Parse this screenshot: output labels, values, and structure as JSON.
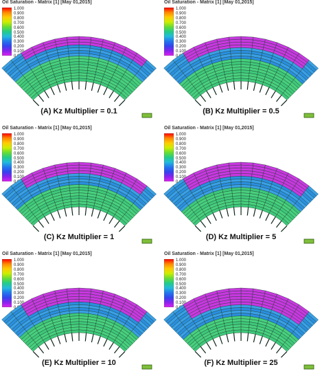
{
  "colorbar": {
    "ticks": [
      "1.000",
      "0.900",
      "0.800",
      "0.700",
      "0.600",
      "0.500",
      "0.400",
      "0.300",
      "0.200",
      "0.100",
      "0.000"
    ],
    "colors": [
      "#ff0000",
      "#ff8800",
      "#ffcc00",
      "#ccee00",
      "#66dd33",
      "#22cc88",
      "#22bbdd",
      "#2277ee",
      "#3344ee",
      "#8822ee",
      "#dd22ee"
    ]
  },
  "panels": [
    {
      "title": "Oil Saturation - Matrix [1] [May 01,2015]",
      "caption": "(A) Kz Multiplier = 0.1"
    },
    {
      "title": "Oil Saturation - Matrix [1] [May 01,2015]",
      "caption": "(B) Kz Multiplier = 0.5"
    },
    {
      "title": "Oil Saturation - Matrix [1] [May 01,2015]",
      "caption": "(C) Kz Multiplier = 1"
    },
    {
      "title": "Oil Saturation - Matrix [1] [May 01,2015]",
      "caption": "(D) Kz Multiplier = 5"
    },
    {
      "title": "Oil Saturation - Matrix [1] [May 01,2015]",
      "caption": "(E) Kz Multiplier = 10"
    },
    {
      "title": "Oil Saturation - Matrix [1] [May 01,2015]",
      "caption": "(F) Kz Multiplier = 25"
    }
  ]
}
